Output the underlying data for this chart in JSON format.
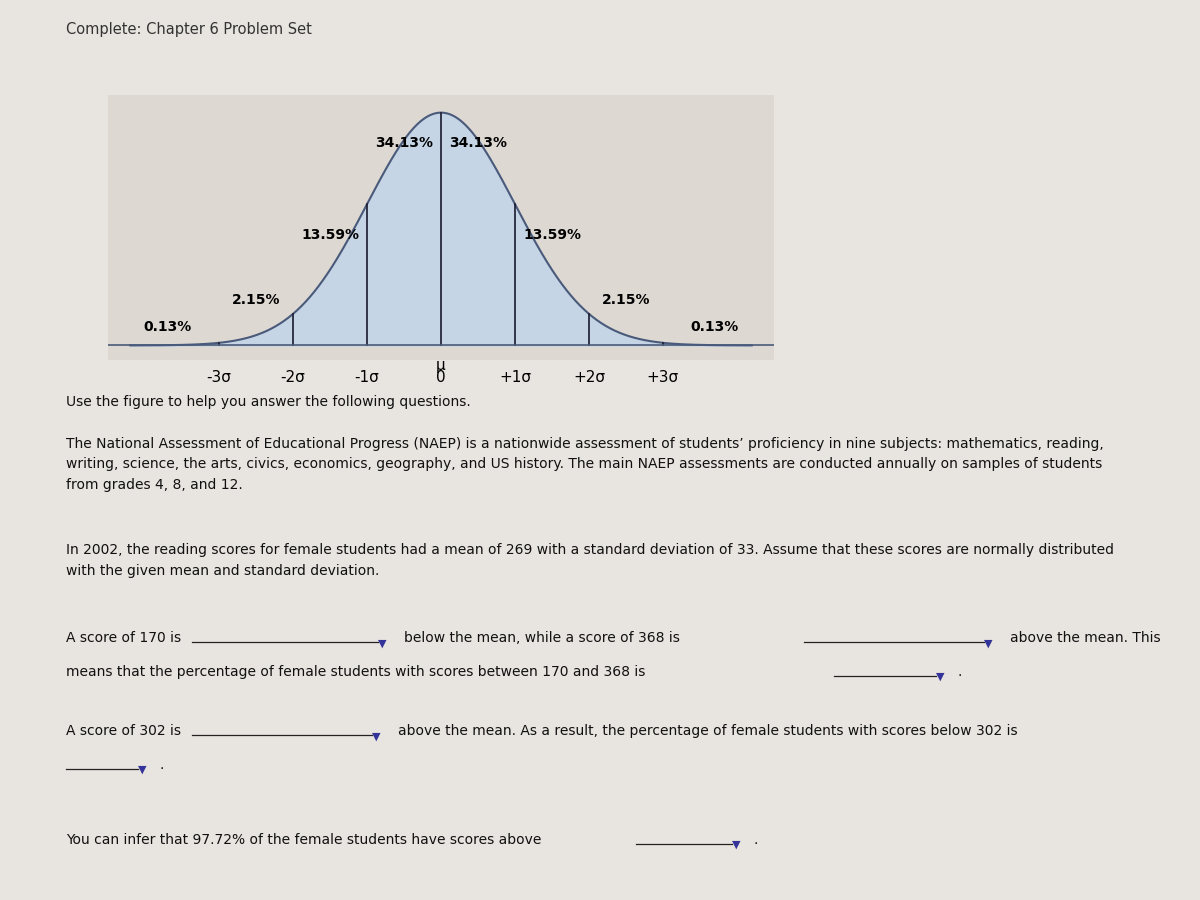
{
  "title": "Complete: Chapter 6 Problem Set",
  "bg_color": "#e8e4df",
  "chart_bg": "#ddd8d2",
  "bell_fill_color": "#c5d5e5",
  "bell_line_color": "#4a5a7a",
  "divider_color": "#1a1a2e",
  "gold_color": "#b8a040",
  "percentages": [
    "0.13%",
    "2.15%",
    "13.59%",
    "34.13%",
    "34.13%",
    "13.59%",
    "2.15%",
    "0.13%"
  ],
  "pct_midpoints": [
    -3.7,
    -2.5,
    -1.5,
    -0.5,
    0.5,
    1.5,
    2.5,
    3.7
  ],
  "pct_y_vals": [
    0.02,
    0.065,
    0.178,
    0.335,
    0.335,
    0.178,
    0.065,
    0.02
  ],
  "x_tick_labels": [
    "-3σ",
    "-2σ",
    "-1σ",
    "0",
    "+1σ",
    "+2σ",
    "+3σ"
  ],
  "x_tick_pos": [
    -3,
    -2,
    -1,
    0,
    1,
    2,
    3
  ],
  "p1": "Use the figure to help you answer the following questions.",
  "p2": "The National Assessment of Educational Progress (NAEP) is a nationwide assessment of students’ proficiency in nine subjects: mathematics, reading,\nwriting, science, the arts, civics, economics, geography, and US history. The main NAEP assessments are conducted annually on samples of students\nfrom grades 4, 8, and 12.",
  "p3": "In 2002, the reading scores for female students had a mean of 269 with a standard deviation of 33. Assume that these scores are normally distributed\nwith the given mean and standard deviation.",
  "q1_prefix": "A score of 170 is",
  "q1_mid": "below the mean, while a score of 368 is",
  "q1_suffix": "above the mean. This",
  "q1b": "means that the percentage of female students with scores between 170 and 368 is",
  "q2_prefix": "A score of 302 is",
  "q2_mid": "above the mean. As a result, the percentage of female students with scores below 302 is",
  "q3": "You can infer that 97.72% of the female students have scores above",
  "arrow_color": "#333399",
  "underline_color": "#222222",
  "text_color": "#111111"
}
